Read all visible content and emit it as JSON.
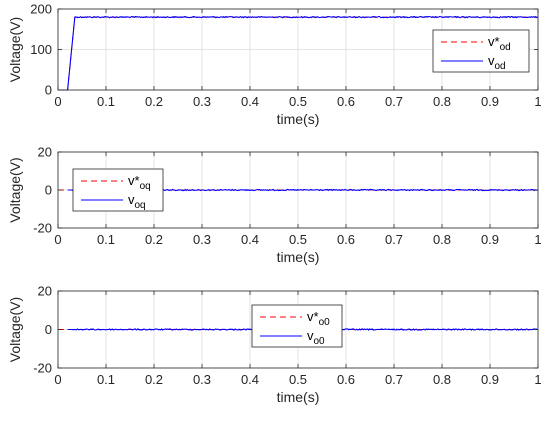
{
  "colors": {
    "reference": "#ff0000",
    "measured": "#0000ff",
    "grid": "#dcdcdc",
    "axis": "#262626"
  },
  "chart_data": [
    {
      "type": "line",
      "xlabel": "time(s)",
      "ylabel": "Voltage(V)",
      "xlim": [
        0,
        1
      ],
      "ylim": [
        0,
        200
      ],
      "xticks": [
        0,
        0.1,
        0.2,
        0.3,
        0.4,
        0.5,
        0.6,
        0.7,
        0.8,
        0.9,
        1
      ],
      "xtick_labels": [
        "0",
        "0.1",
        "0.2",
        "0.3",
        "0.4",
        "0.5",
        "0.6",
        "0.7",
        "0.8",
        "0.9",
        "1"
      ],
      "yticks": [
        0,
        100,
        200
      ],
      "ytick_labels": [
        "0",
        "100",
        "200"
      ],
      "grid": true,
      "legend_position": "upper-right",
      "series": [
        {
          "name": "v*od",
          "main": "v*",
          "sub": "od",
          "color": "#ff0000",
          "dash": true,
          "x": [
            0,
            0.02,
            0.035,
            1
          ],
          "y": [
            0,
            0,
            180,
            180
          ]
        },
        {
          "name": "vod",
          "main": "v",
          "sub": "od",
          "color": "#0000ff",
          "dash": false,
          "x": [
            0,
            0.02,
            0.035,
            1
          ],
          "y": [
            0,
            0,
            180,
            180
          ]
        }
      ]
    },
    {
      "type": "line",
      "xlabel": "time(s)",
      "ylabel": "Voltage(V)",
      "xlim": [
        0,
        1
      ],
      "ylim": [
        -20,
        20
      ],
      "xticks": [
        0,
        0.1,
        0.2,
        0.3,
        0.4,
        0.5,
        0.6,
        0.7,
        0.8,
        0.9,
        1
      ],
      "xtick_labels": [
        "0",
        "0.1",
        "0.2",
        "0.3",
        "0.4",
        "0.5",
        "0.6",
        "0.7",
        "0.8",
        "0.9",
        "1"
      ],
      "yticks": [
        -20,
        0,
        20
      ],
      "ytick_labels": [
        "-20",
        "0",
        "20"
      ],
      "grid": true,
      "legend_position": "upper-left",
      "series": [
        {
          "name": "v*oq",
          "main": "v*",
          "sub": "oq",
          "color": "#ff0000",
          "dash": true,
          "x": [
            0,
            1
          ],
          "y": [
            0,
            0
          ]
        },
        {
          "name": "voq",
          "main": "v",
          "sub": "oq",
          "color": "#0000ff",
          "dash": false,
          "x": [
            0.02,
            1
          ],
          "y": [
            0,
            0
          ]
        }
      ]
    },
    {
      "type": "line",
      "xlabel": "time(s)",
      "ylabel": "Voltage(V)",
      "xlim": [
        0,
        1
      ],
      "ylim": [
        -20,
        20
      ],
      "xticks": [
        0,
        0.1,
        0.2,
        0.3,
        0.4,
        0.5,
        0.6,
        0.7,
        0.8,
        0.9,
        1
      ],
      "xtick_labels": [
        "0",
        "0.1",
        "0.2",
        "0.3",
        "0.4",
        "0.5",
        "0.6",
        "0.7",
        "0.8",
        "0.9",
        "1"
      ],
      "yticks": [
        -20,
        0,
        20
      ],
      "ytick_labels": [
        "-20",
        "0",
        "20"
      ],
      "grid": true,
      "legend_position": "center",
      "series": [
        {
          "name": "v*o0",
          "main": "v*",
          "sub": "o0",
          "color": "#ff0000",
          "dash": true,
          "x": [
            0,
            1
          ],
          "y": [
            0,
            0
          ]
        },
        {
          "name": "vo0",
          "main": "v",
          "sub": "o0",
          "color": "#0000ff",
          "dash": false,
          "x": [
            0.02,
            1
          ],
          "y": [
            0,
            0
          ]
        }
      ]
    }
  ]
}
